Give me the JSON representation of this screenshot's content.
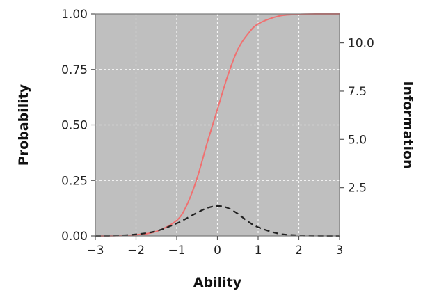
{
  "chart_data": {
    "type": "line",
    "xlabel": "Ability",
    "ylabel": "Probability",
    "y2label": "Information",
    "xlim": [
      -3,
      3
    ],
    "ylim": [
      0,
      1
    ],
    "y2lim": [
      0,
      11.5
    ],
    "x_ticks": [
      "−3",
      "−2",
      "−1",
      "0",
      "1",
      "2",
      "3"
    ],
    "y_ticks": [
      "0.00",
      "0.25",
      "0.50",
      "0.75",
      "1.00"
    ],
    "y2_ticks": [
      "2.5",
      "5.0",
      "7.5",
      "10.0"
    ],
    "grid": true,
    "background": "#bfbfbf",
    "series": [
      {
        "style": "solid",
        "axis": "left",
        "color": "#f07070",
        "x": [
          -3.0,
          -2.5,
          -2.0,
          -1.5,
          -1.0,
          -0.75,
          -0.5,
          -0.25,
          0.0,
          0.25,
          0.5,
          0.75,
          1.0,
          1.5,
          2.0,
          2.5,
          3.0
        ],
        "y": [
          0.0,
          0.001,
          0.005,
          0.02,
          0.07,
          0.14,
          0.26,
          0.42,
          0.57,
          0.72,
          0.84,
          0.91,
          0.955,
          0.99,
          0.998,
          1.0,
          1.0
        ]
      },
      {
        "style": "dashed",
        "axis": "right",
        "color": "#222222",
        "x": [
          -3.0,
          -2.5,
          -2.0,
          -1.5,
          -1.0,
          -0.75,
          -0.5,
          -0.25,
          0.0,
          0.25,
          0.5,
          0.75,
          1.0,
          1.5,
          2.0,
          2.5,
          3.0
        ],
        "y": [
          0.0,
          0.02,
          0.08,
          0.25,
          0.65,
          0.92,
          1.2,
          1.45,
          1.55,
          1.45,
          1.15,
          0.75,
          0.45,
          0.12,
          0.03,
          0.01,
          0.0
        ]
      }
    ]
  }
}
